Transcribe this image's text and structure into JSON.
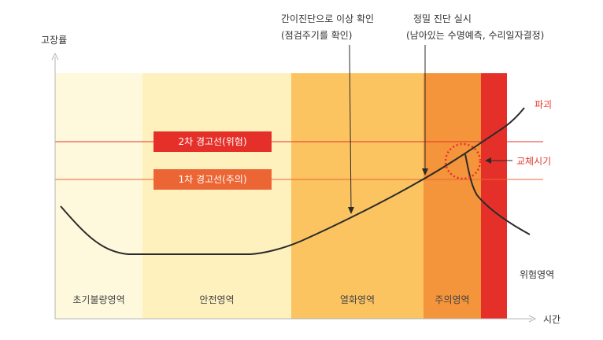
{
  "axes": {
    "y_label": "고장률",
    "x_label": "시간"
  },
  "zones": [
    {
      "label": "초기불량영역",
      "color": "#fef9dd"
    },
    {
      "label": "안전영역",
      "color": "#fef1be"
    },
    {
      "label": "열화영역",
      "color": "#fcc461"
    },
    {
      "label": "주의영역",
      "color": "#f4943b"
    },
    {
      "label": "",
      "color": "#e5302a"
    }
  ],
  "warning_lines": {
    "level2": "2차 경고선(위험)",
    "level1": "1차 경고선(주의)",
    "level2_color": "#e5302a",
    "level1_color": "#ec6534"
  },
  "annotations": {
    "simple_diag_title": "간이진단으로 이상 확인",
    "simple_diag_sub": "(점검주기를 확인)",
    "precise_diag_title": "정밀 진단 실시",
    "precise_diag_sub": "(남아있는 수명예측, 수리일자결정)",
    "failure": "파괴",
    "replace": "교체시기",
    "danger_zone": "위험영역"
  },
  "colors": {
    "curve": "#2b2b2b",
    "axis": "#b5b5b5",
    "accent_red": "#e53a2f"
  }
}
